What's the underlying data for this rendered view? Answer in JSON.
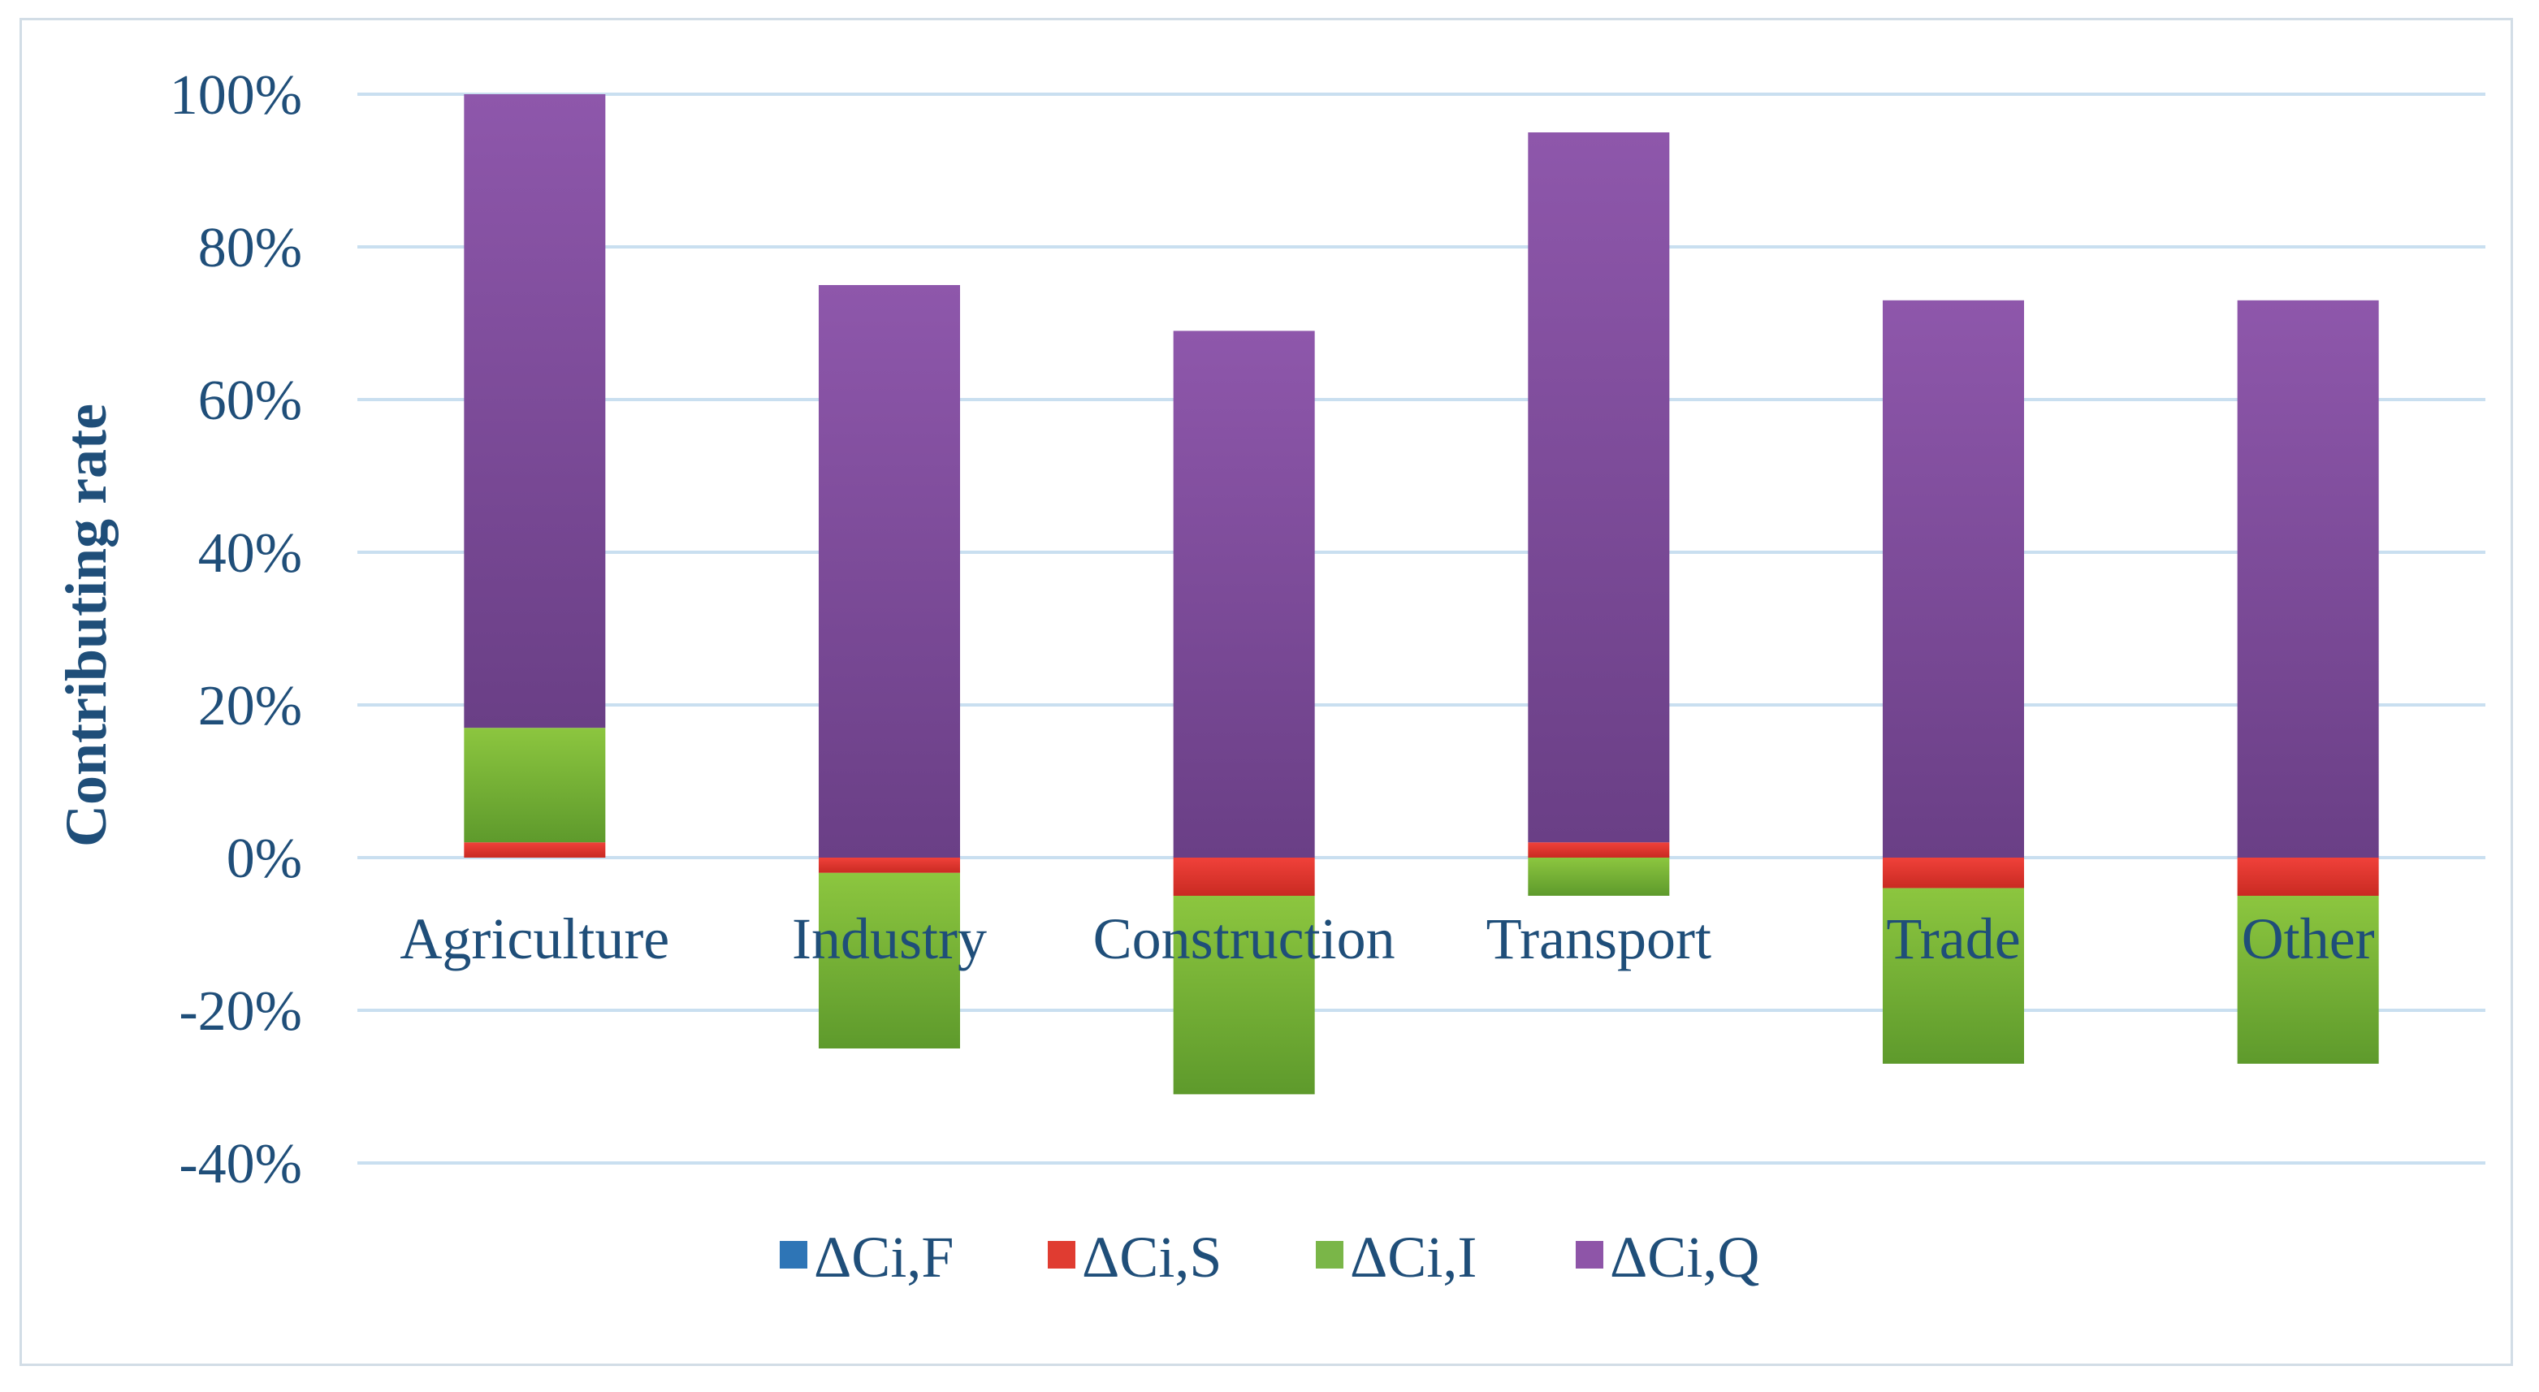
{
  "chart_data": {
    "type": "bar",
    "stacked": true,
    "title": "",
    "xlabel": "",
    "ylabel": "Contributing rate",
    "ylim": [
      -40,
      100
    ],
    "yticks": [
      100,
      80,
      60,
      40,
      20,
      0,
      -20,
      -40
    ],
    "ytick_labels": [
      "100%",
      "80%",
      "60%",
      "40%",
      "20%",
      "0%",
      "-20%",
      "-40%"
    ],
    "grid": true,
    "legend_position": "bottom",
    "categories": [
      "Agriculture",
      "Industry",
      "Construction",
      "Transport",
      "Trade",
      "Other"
    ],
    "series": [
      {
        "name": "ΔCi,F",
        "color": "#2e75b6",
        "values": [
          0,
          0,
          0,
          0,
          0,
          0
        ]
      },
      {
        "name": "ΔCi,S",
        "color": "#e03c31",
        "values": [
          2,
          -2,
          -5,
          2,
          -4,
          -5
        ]
      },
      {
        "name": "ΔCi,I",
        "color": "#7ab648",
        "values": [
          15,
          -23,
          -26,
          -5,
          -23,
          -22
        ]
      },
      {
        "name": "ΔCi,Q",
        "color": "#8e55a8",
        "values": [
          83,
          75,
          69,
          93,
          73,
          73
        ]
      }
    ]
  }
}
